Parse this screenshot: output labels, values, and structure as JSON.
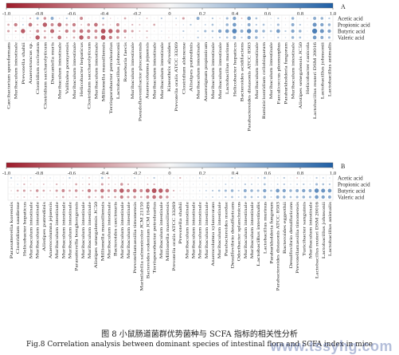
{
  "figure": {
    "caption_cn": "图 8   小鼠肠道菌群优势菌种与 SCFA 指标的相关性分析",
    "caption_en": "Fig.8    Correlation analysis between dominant species of intestinal flora and SCFA index in mice",
    "watermark": "www.tssyhg.com"
  },
  "colors": {
    "negative": "#9e1b2a",
    "zero": "#f7f7f7",
    "positive": "#1f5fa5"
  },
  "chart_data": [
    {
      "type": "heatmap",
      "panel_label": "A",
      "colorbar_ticks": [
        -1.0,
        -0.8,
        -0.6,
        -0.4,
        -0.2,
        0,
        0.2,
        0.4,
        0.6,
        0.8,
        1.0
      ],
      "rows": [
        "Acetic acid",
        "Propionic acid",
        "Butyric acid",
        "Valeric acid"
      ],
      "columns": [
        "Caecibacterium sporoformans",
        "Muribaculum intestinale",
        "Prevotella shahii",
        "Anaerotruncus sp.",
        "Clostridium cocleatum",
        "Clostridium saccharolyticum",
        "Duncaniella muris",
        "Muribaculum intestinale",
        "Vallitalea pronyensis",
        "Muribaculum intestinale",
        "Helicobacter hepaticus",
        "Clostridium saccharolyticum",
        "Muribaculum intestinale",
        "Millionella massiliensis",
        "Terrisporobacter petrolearius",
        "Lactobacillus johnsonii",
        "Roseburia faecis",
        "Muribaculum intestinale",
        "Pseudoflavonifractor phocaeensis",
        "Anaerocolumna jejuensis",
        "Muribaculum intestinale",
        "Muribaculum intestinale",
        "Kineothrix alysoides",
        "Prevotella oralis ATCC 33269",
        "Clostridium aldenense",
        "Alistipes putredinis",
        "Muribaculum intestinale",
        "Anaerotignum propionicum",
        "Muribaculum intestinale",
        "Muribaculum intestinale",
        "Lactobacillus murinus",
        "Helicobacter hepaticus",
        "Bacteroides acidifaciens",
        "Parabacteroides distasonis ATCC 8503",
        "Muribaculum intestinale",
        "Ruminiclostridium cellobioparum",
        "Muribaculum intestinale",
        "Faecalicoccus pleomorphus",
        "Paraburkholderia fungorum",
        "Muribaculum intestinale",
        "Alistipes senegalensis JC50",
        "Helicobacter canicola",
        "Lactobacillus reuteri DSM 20016",
        "Lactobacillus johnsonii",
        "Lactobacillus animalis"
      ],
      "values": [
        [
          0.05,
          -0.1,
          0.2,
          -0.3,
          0.4,
          -0.45,
          0.5,
          -0.2,
          0.3,
          0.15,
          -0.5,
          0.1,
          -0.05,
          0.35,
          -0.2,
          0.15,
          -0.35,
          0.1,
          0.2,
          -0.25,
          0.05,
          0.3,
          -0.05,
          0.25,
          -0.4,
          0.1,
          0.5,
          -0.1,
          0.3,
          -0.2,
          0.4,
          0.55,
          -0.25,
          0.6,
          0.35,
          -0.1,
          0.2,
          0.3,
          -0.15,
          0.45,
          0.1,
          -0.2,
          0.5,
          0.45,
          0.3
        ],
        [
          -0.35,
          -0.55,
          0.25,
          -0.6,
          -0.3,
          -0.7,
          -0.5,
          -0.65,
          -0.4,
          -0.55,
          -0.25,
          -0.45,
          -0.6,
          -0.35,
          -0.2,
          -0.5,
          -0.15,
          -0.3,
          -0.25,
          -0.1,
          -0.35,
          0.15,
          0.05,
          -0.2,
          0.2,
          0.3,
          -0.1,
          0.25,
          0.35,
          0.15,
          0.45,
          0.6,
          0.2,
          0.5,
          0.3,
          0.35,
          0.2,
          0.4,
          0.15,
          0.5,
          0.3,
          -0.1,
          0.65,
          0.55,
          0.45
        ],
        [
          -0.4,
          -0.3,
          -0.7,
          -0.25,
          -0.5,
          -0.35,
          -0.65,
          -0.3,
          -0.55,
          -0.45,
          -0.6,
          -0.55,
          -0.5,
          -0.75,
          -0.7,
          -0.6,
          -0.5,
          -0.4,
          -0.25,
          -0.3,
          -0.1,
          0.2,
          -0.15,
          0.1,
          0.3,
          -0.05,
          0.25,
          0.4,
          0.35,
          0.55,
          0.6,
          0.75,
          0.5,
          0.7,
          0.5,
          0.45,
          0.35,
          0.6,
          0.3,
          0.55,
          0.45,
          0.15,
          0.8,
          0.65,
          0.55
        ],
        [
          0.1,
          -0.15,
          0.2,
          -0.2,
          -0.7,
          -0.4,
          -0.3,
          -0.6,
          -0.25,
          -0.35,
          -0.7,
          -0.5,
          -0.45,
          -0.75,
          -0.55,
          -0.45,
          -0.3,
          -0.2,
          -0.15,
          -0.25,
          0.05,
          0.1,
          -0.2,
          0.15,
          0.2,
          0.05,
          0.3,
          0.2,
          0.25,
          0.3,
          0.35,
          0.5,
          0.3,
          0.55,
          0.45,
          0.25,
          0.15,
          0.3,
          0.2,
          0.45,
          0.35,
          0.1,
          0.6,
          0.5,
          0.4
        ]
      ]
    },
    {
      "type": "heatmap",
      "panel_label": "B",
      "colorbar_ticks": [
        -1.0,
        -0.8,
        -0.6,
        -0.4,
        -0.2,
        0,
        0.2,
        0.4,
        0.6,
        0.8,
        1.0
      ],
      "rows": [
        "Acetic acid",
        "Propionic acid",
        "Butyric acid",
        "Valeric acid"
      ],
      "columns": [
        "Parasutterella korensis",
        "Clostridium saudiense",
        "Helicobacter hepaticus",
        "Muribaculum intestinale",
        "Muribaculum intestinale",
        "Alistipes putredinis",
        "Anaerocolumna jejuensis",
        "Muribaculum intestinale",
        "Muribaculum intestinale",
        "Muribaculum intestinale",
        "Parasutterella bongkongensis",
        "Muribaculum intestinale",
        "Muribaculum intestinale",
        "Alistipes senegalensis JC50",
        "Millionella massiliensis",
        "Muribaculum intestinale",
        "Bacteroides caecimuris",
        "Muribaculum intestinale",
        "Muribaculum intestinale",
        "Prevotellamassilia timonensis",
        "Marinilabilia salmonicolor JCM 21150",
        "Bacteroides rodentium JCM 16496",
        "Terrisporobacter petrolearius",
        "Muribaculum intestinale",
        "Millionella massiliensis",
        "Prevotella oralis ATCC 33269",
        "Prevotella shahii",
        "Muribaculum intestinale",
        "Muribaculum intestinale",
        "Muribaculum intestinale",
        "Muribaculum intestinale",
        "Anaerocolumna xylanovorans",
        "Muribaculum intestinale",
        "Parabacteroides merdae",
        "Desulfovibrio desulfuricans",
        "Odoribacter splanchnicus",
        "Muribaculum intestinale",
        "Muribaculum intestinale",
        "Lactobacillus intestinalis",
        "Lactobacillus murinus",
        "Paraburkholderia fungorum",
        "Parabacteroides distasonis ATCC 8503",
        "Bacteroides eggerthii",
        "Desulfovibrio desulfuricans",
        "Prevotellamassilia timonensis",
        "Turicibacter sanguinis",
        "Muribaculum intestinale",
        "Lactobacillus reuteri DSM 20016",
        "Lactobacillus johnsonii",
        "Lactobacillus animalis"
      ],
      "values": [
        [
          0.3,
          0.15,
          -0.2,
          0.25,
          0.1,
          -0.15,
          0.2,
          0.05,
          -0.1,
          0.3,
          0.15,
          0.2,
          -0.25,
          0.1,
          0.35,
          -0.3,
          0.15,
          0.2,
          -0.1,
          0.25,
          0.1,
          -0.2,
          0.3,
          0.15,
          -0.05,
          0.2,
          -0.3,
          0.1,
          0.15,
          0.25,
          -0.15,
          0.2,
          0.1,
          -0.1,
          0.3,
          0.2,
          0.15,
          -0.2,
          0.25,
          0.35,
          -0.1,
          0.2,
          0.3,
          0.15,
          -0.25,
          0.2,
          0.1,
          0.3,
          0.25,
          0.2
        ],
        [
          -0.1,
          0.2,
          -0.3,
          -0.2,
          -0.15,
          -0.25,
          0.1,
          -0.3,
          -0.2,
          -0.1,
          -0.35,
          -0.2,
          -0.3,
          -0.15,
          -0.4,
          -0.25,
          -0.2,
          -0.45,
          -0.3,
          -0.2,
          -0.1,
          -0.25,
          -0.3,
          -0.15,
          -0.2,
          0.1,
          -0.15,
          0.05,
          0.15,
          0.1,
          0.2,
          0.15,
          0.1,
          0.25,
          0.2,
          0.15,
          0.3,
          0.25,
          0.2,
          0.35,
          0.15,
          0.25,
          0.3,
          0.2,
          0.25,
          0.3,
          0.2,
          0.4,
          0.35,
          0.3
        ],
        [
          -0.2,
          -0.35,
          -0.4,
          -0.3,
          -0.45,
          -0.35,
          -0.25,
          -0.4,
          -0.5,
          -0.35,
          -0.45,
          -0.3,
          -0.55,
          -0.4,
          -0.6,
          -0.45,
          -0.5,
          -0.7,
          -0.55,
          -0.6,
          -0.5,
          -0.65,
          -0.75,
          -0.7,
          -0.6,
          -0.3,
          -0.2,
          -0.1,
          0.15,
          0.2,
          0.25,
          0.3,
          0.35,
          0.4,
          0.45,
          0.3,
          0.5,
          0.45,
          0.4,
          0.55,
          0.35,
          0.6,
          0.55,
          0.45,
          0.5,
          0.55,
          0.5,
          0.7,
          0.65,
          0.6
        ],
        [
          -0.1,
          -0.2,
          -0.25,
          -0.15,
          -0.3,
          -0.2,
          -0.1,
          -0.25,
          -0.35,
          -0.2,
          -0.3,
          -0.15,
          -0.4,
          -0.25,
          -0.45,
          -0.3,
          -0.35,
          -0.55,
          -0.4,
          -0.45,
          -0.35,
          -0.5,
          -0.6,
          -0.55,
          -0.45,
          -0.2,
          -0.1,
          0.05,
          0.1,
          0.15,
          0.2,
          0.25,
          0.2,
          0.3,
          0.35,
          0.25,
          0.4,
          0.35,
          0.3,
          0.45,
          0.25,
          0.5,
          0.45,
          0.35,
          0.4,
          0.45,
          0.4,
          0.6,
          0.55,
          0.5
        ]
      ]
    }
  ]
}
